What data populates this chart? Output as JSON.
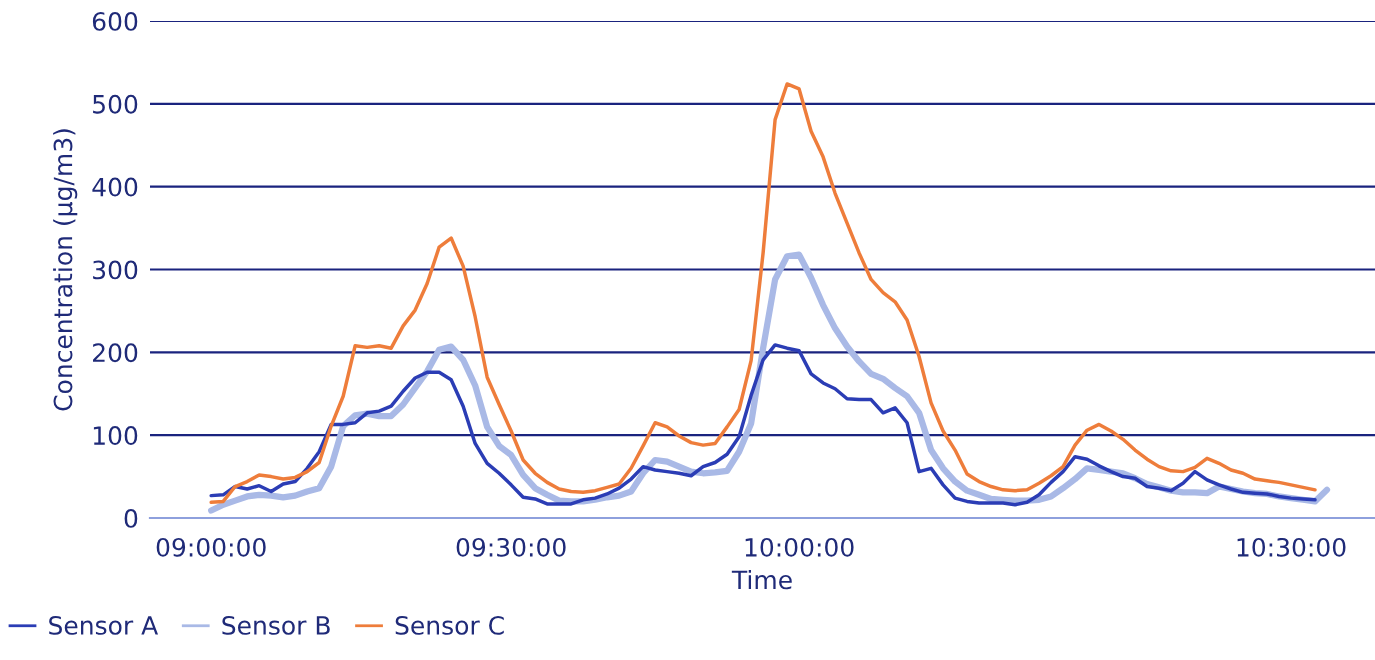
{
  "chart_data": {
    "type": "line",
    "xlabel": "Time",
    "ylabel": "Concentration (µg/m3)",
    "categories": [
      "09:00:00",
      null,
      null,
      null,
      null,
      null,
      null,
      null,
      null,
      null,
      null,
      null,
      null,
      null,
      null,
      null,
      null,
      null,
      null,
      null,
      null,
      null,
      null,
      null,
      null,
      "09:30:00",
      null,
      null,
      null,
      null,
      null,
      null,
      null,
      null,
      null,
      null,
      null,
      null,
      null,
      null,
      null,
      null,
      null,
      null,
      null,
      null,
      null,
      null,
      null,
      "10:00:00",
      null,
      null,
      null,
      null,
      null,
      null,
      null,
      null,
      null,
      null,
      null,
      null,
      null,
      null,
      null,
      null,
      null,
      null,
      null,
      null,
      null,
      null,
      null,
      null,
      null,
      null,
      null,
      null,
      null,
      null,
      null,
      null,
      null,
      null,
      null,
      null,
      null,
      null,
      null,
      null,
      "10:30:00",
      null,
      null,
      null
    ],
    "series": [
      {
        "name": "Sensor A",
        "color": "#2b3db5",
        "values": [
          27,
          28,
          38,
          35,
          39,
          32,
          41,
          44,
          60,
          80,
          113,
          113,
          115,
          127,
          129,
          135,
          153,
          169,
          176,
          176,
          167,
          135,
          90,
          66,
          54,
          40,
          25,
          23,
          17,
          17,
          17,
          22,
          24,
          29,
          36,
          47,
          62,
          58,
          56,
          54,
          51,
          62,
          67,
          77,
          98,
          148,
          191,
          209,
          205,
          202,
          174,
          163,
          156,
          144,
          143,
          143,
          127,
          133,
          115,
          56,
          60,
          40,
          24,
          20,
          18,
          18,
          18,
          16,
          19,
          28,
          43,
          56,
          74,
          71,
          63,
          56,
          50,
          48,
          38,
          36,
          33,
          42,
          56,
          46,
          40,
          35,
          31,
          30,
          29,
          26,
          24,
          23,
          22,
          null
        ]
      },
      {
        "name": "Sensor B",
        "color": "#a9b9e6",
        "values": [
          9,
          16,
          21,
          26,
          28,
          27,
          25,
          27,
          32,
          36,
          62,
          111,
          124,
          126,
          123,
          123,
          137,
          157,
          177,
          203,
          207,
          191,
          160,
          110,
          87,
          76,
          52,
          36,
          28,
          21,
          20,
          20,
          22,
          25,
          27,
          32,
          54,
          70,
          68,
          62,
          56,
          54,
          55,
          57,
          80,
          114,
          205,
          288,
          316,
          318,
          290,
          257,
          229,
          207,
          189,
          174,
          168,
          157,
          147,
          127,
          82,
          60,
          44,
          33,
          28,
          23,
          22,
          21,
          21,
          22,
          26,
          36,
          47,
          60,
          58,
          56,
          54,
          48,
          41,
          37,
          33,
          31,
          31,
          30,
          38,
          35,
          32,
          30,
          29,
          26,
          24,
          22,
          20,
          34
        ]
      },
      {
        "name": "Sensor C",
        "color": "#ee7d3b",
        "values": [
          19,
          20,
          38,
          44,
          52,
          50,
          47,
          49,
          56,
          67,
          111,
          147,
          208,
          206,
          208,
          205,
          232,
          251,
          283,
          327,
          338,
          304,
          243,
          170,
          137,
          105,
          70,
          54,
          43,
          35,
          32,
          31,
          33,
          37,
          41,
          60,
          87,
          115,
          110,
          99,
          91,
          88,
          90,
          110,
          131,
          190,
          320,
          481,
          524,
          518,
          467,
          436,
          392,
          356,
          320,
          288,
          272,
          261,
          239,
          195,
          139,
          105,
          82,
          53,
          44,
          38,
          34,
          33,
          34,
          42,
          51,
          62,
          88,
          106,
          113,
          105,
          95,
          82,
          71,
          62,
          57,
          56,
          61,
          72,
          66,
          58,
          54,
          47,
          45,
          43,
          40,
          37,
          34,
          null
        ]
      }
    ],
    "ylim": [
      0,
      600
    ],
    "yticks": [
      0,
      100,
      200,
      300,
      400,
      500,
      600
    ],
    "grid": "y",
    "legend": "bottom left",
    "marker": "none",
    "line_style": "solid"
  }
}
